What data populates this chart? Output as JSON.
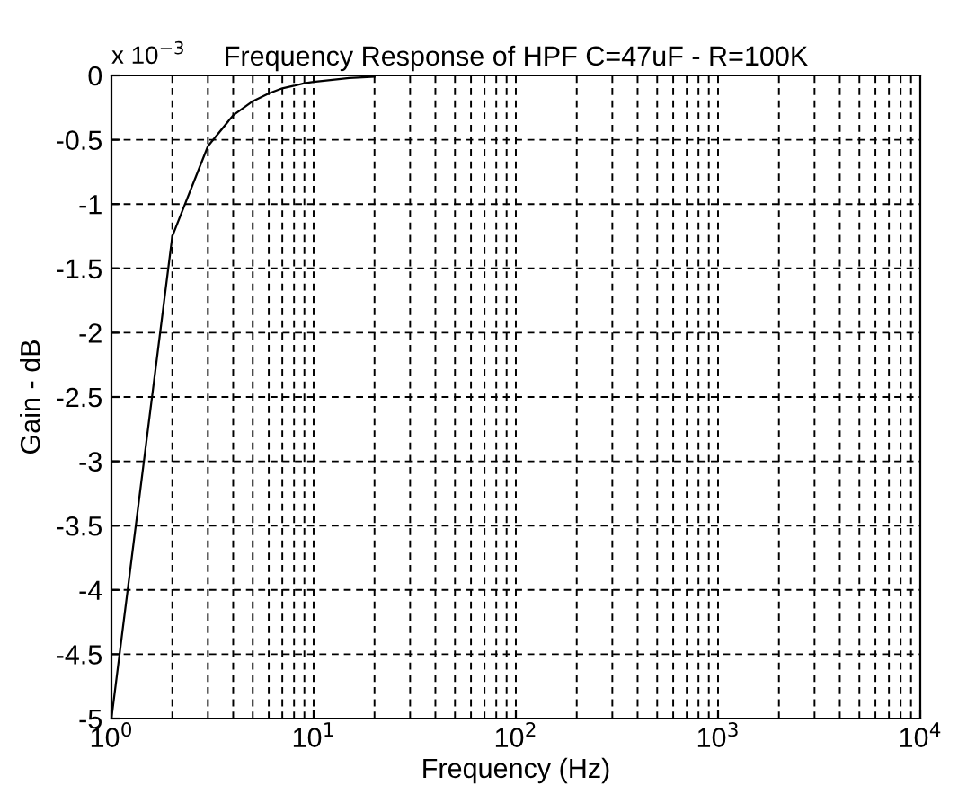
{
  "chart_data": {
    "type": "line",
    "title": "Frequency Response of HPF C=47uF - R=100K",
    "xlabel": "Frequency (Hz)",
    "ylabel": "Gain - dB",
    "annotations": [
      "x 10$^{−3}$"
    ],
    "log": "x",
    "grid": true,
    "marker": "none",
    "line_style": "solid",
    "xlim": [
      1,
      10000
    ],
    "xticks": [
      {
        "value": 1,
        "label": "10$^{0}$"
      },
      {
        "value": 10,
        "label": "10$^{1}$"
      },
      {
        "value": 100,
        "label": "10$^{2}$"
      },
      {
        "value": 1000,
        "label": "10$^{3}$"
      },
      {
        "value": 10000,
        "label": "10$^{4}$"
      }
    ],
    "ylim": [
      -5,
      0
    ],
    "yticks": [
      {
        "value": -5,
        "label": "-5"
      },
      {
        "value": -4.5,
        "label": "-4.5"
      },
      {
        "value": -4,
        "label": "-4"
      },
      {
        "value": -3.5,
        "label": "-3.5"
      },
      {
        "value": -3,
        "label": "-3"
      },
      {
        "value": -2.5,
        "label": "-2.5"
      },
      {
        "value": -2,
        "label": "-2"
      },
      {
        "value": -1.5,
        "label": "-1.5"
      },
      {
        "value": -1,
        "label": "-1"
      },
      {
        "value": -0.5,
        "label": "-0.5"
      },
      0
    ],
    "series": [
      {
        "color": "#000000",
        "x": [
          1,
          2,
          3,
          4,
          5,
          6,
          7,
          8,
          9,
          10,
          15,
          20
        ],
        "values": [
          -5,
          -1.25,
          -0.55,
          -0.31,
          -0.2,
          -0.14,
          -0.1,
          -0.08,
          -0.06,
          -0.05,
          -0.02,
          -0.01
        ]
      }
    ]
  }
}
